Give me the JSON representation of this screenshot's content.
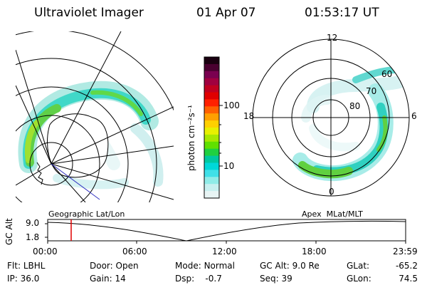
{
  "header": {
    "instrument": "Ultraviolet Imager",
    "date": "01 Apr 07",
    "time": "01:53:17 UT"
  },
  "colorbar": {
    "unit_label": "photon cm⁻²s⁻¹",
    "ticks": [
      "100",
      "10"
    ],
    "colors": [
      "#1a0010",
      "#4a0030",
      "#7a0050",
      "#a00040",
      "#c00020",
      "#e00000",
      "#ff2000",
      "#ff6000",
      "#ffa000",
      "#ffd000",
      "#e8f000",
      "#a8e800",
      "#60e000",
      "#20d040",
      "#00c8a0",
      "#00d8d8",
      "#40e0e8",
      "#90ece8",
      "#c8f0f0",
      "#e8f4f4"
    ]
  },
  "left_map": {
    "projection_label": "Geographic Lat/Lon"
  },
  "right_map": {
    "projection_label": "Apex  MLat/MLT",
    "mlt_labels": {
      "top": "12",
      "left": "18",
      "right": "6",
      "bottom": "0"
    },
    "lat_labels": [
      "60",
      "70",
      "80"
    ]
  },
  "altitude_plot": {
    "ylabel": "GC Alt",
    "yticks": [
      "9.0",
      "1.8"
    ],
    "xticks": [
      "00:00",
      "06:00",
      "12:00",
      "18:00",
      "23:59"
    ],
    "marker_time": "01:53:17",
    "marker_color": "#e00000"
  },
  "info_rows": [
    [
      {
        "label": "Flt:",
        "value": "LBHL"
      },
      {
        "label": "Door:",
        "value": "Open"
      },
      {
        "label": "Mode:",
        "value": "Normal"
      },
      {
        "label": "GC Alt:",
        "value": "9.0 Re"
      },
      {
        "label": "GLat:",
        "value": "-65.2"
      }
    ],
    [
      {
        "label": "IP:",
        "value": "36.0"
      },
      {
        "label": "Gain:",
        "value": "14"
      },
      {
        "label": "Dsp:",
        "value": "-0.7"
      },
      {
        "label": "Seq:",
        "value": "39"
      },
      {
        "label": "GLon:",
        "value": "74.5"
      }
    ]
  ]
}
